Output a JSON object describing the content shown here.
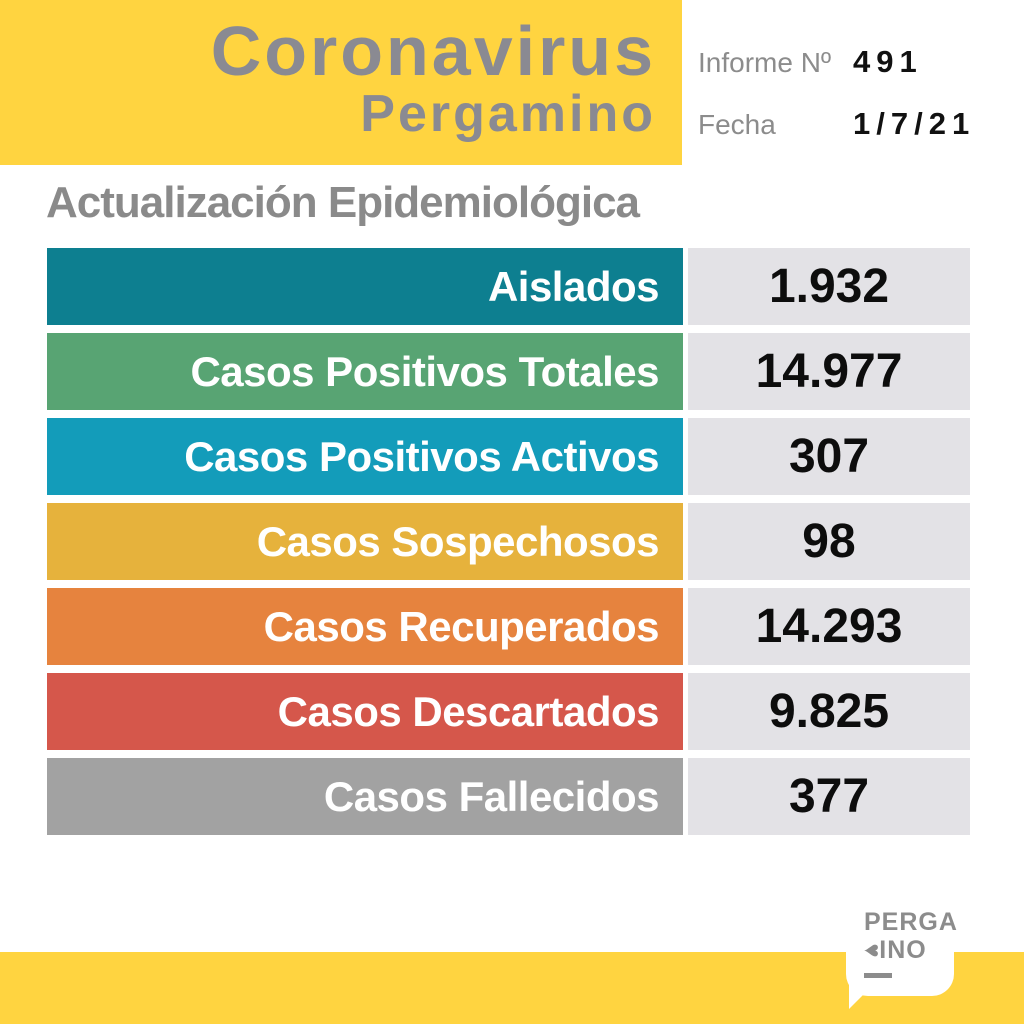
{
  "header": {
    "title_line1": "Coronavirus",
    "title_line2": "Pergamino",
    "report_label": "Informe Nº",
    "report_number": "491",
    "date_label": "Fecha",
    "date_value": "1/7/21",
    "band_color": "#FFD440",
    "title_color": "#8A8A92"
  },
  "section_title": "Actualización Epidemiológica",
  "stats": {
    "value_bg": "#E3E2E6",
    "rows": [
      {
        "label": "Aislados",
        "value": "1.932",
        "color": "#0D7F90"
      },
      {
        "label": "Casos Positivos Totales",
        "value": "14.977",
        "color": "#58A473"
      },
      {
        "label": "Casos Positivos Activos",
        "value": "307",
        "color": "#139CBA"
      },
      {
        "label": "Casos Sospechosos",
        "value": "98",
        "color": "#E6B23C"
      },
      {
        "label": "Casos Recuperados",
        "value": "14.293",
        "color": "#E6833E"
      },
      {
        "label": "Casos Descartados",
        "value": "9.825",
        "color": "#D5574B"
      },
      {
        "label": "Casos Fallecidos",
        "value": "377",
        "color": "#A2A2A2"
      }
    ]
  },
  "chart_data": {
    "type": "table",
    "title": "Actualización Epidemiológica",
    "categories": [
      "Aislados",
      "Casos Positivos Totales",
      "Casos Positivos Activos",
      "Casos Sospechosos",
      "Casos Recuperados",
      "Casos Descartados",
      "Casos Fallecidos"
    ],
    "values": [
      1932,
      14977,
      307,
      98,
      14293,
      9825,
      377
    ],
    "row_colors": [
      "#0D7F90",
      "#58A473",
      "#139CBA",
      "#E6B23C",
      "#E6833E",
      "#D5574B",
      "#A2A2A2"
    ]
  },
  "footer": {
    "logo_line1": "PERGA",
    "logo_line2_suffix": "INO",
    "heart_glyph": "♥",
    "band_color": "#FFD440"
  }
}
